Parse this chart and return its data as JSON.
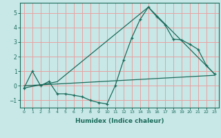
{
  "xlabel": "Humidex (Indice chaleur)",
  "ylabel": "",
  "bg_color": "#c8e8e8",
  "grid_color": "#e8a0a0",
  "line_color": "#1a6b5a",
  "xlim": [
    -0.5,
    23.5
  ],
  "ylim": [
    -1.5,
    5.7
  ],
  "xticks": [
    0,
    1,
    2,
    3,
    4,
    5,
    6,
    7,
    8,
    9,
    10,
    11,
    12,
    13,
    14,
    15,
    16,
    17,
    18,
    19,
    20,
    21,
    22,
    23
  ],
  "yticks": [
    -1,
    0,
    1,
    2,
    3,
    4,
    5
  ],
  "line1_x": [
    0,
    1,
    2,
    3,
    4,
    5,
    6,
    7,
    8,
    9,
    10,
    11,
    12,
    13,
    14,
    15,
    16,
    17,
    18,
    19,
    20,
    21,
    22,
    23
  ],
  "line1_y": [
    -0.15,
    1.0,
    0.0,
    0.3,
    -0.55,
    -0.55,
    -0.65,
    -0.75,
    -1.0,
    -1.15,
    -1.25,
    0.0,
    1.75,
    3.3,
    4.55,
    5.4,
    4.75,
    4.2,
    3.2,
    3.15,
    2.85,
    2.5,
    1.4,
    0.8
  ],
  "line2_x": [
    0,
    4,
    15,
    23
  ],
  "line2_y": [
    -0.15,
    0.28,
    5.4,
    0.8
  ],
  "line3_x": [
    0,
    23
  ],
  "line3_y": [
    0.0,
    0.72
  ],
  "xlabel_fontsize": 6.5,
  "xlabel_fontweight": "bold",
  "xtick_fontsize": 4.5,
  "ytick_fontsize": 5.5
}
